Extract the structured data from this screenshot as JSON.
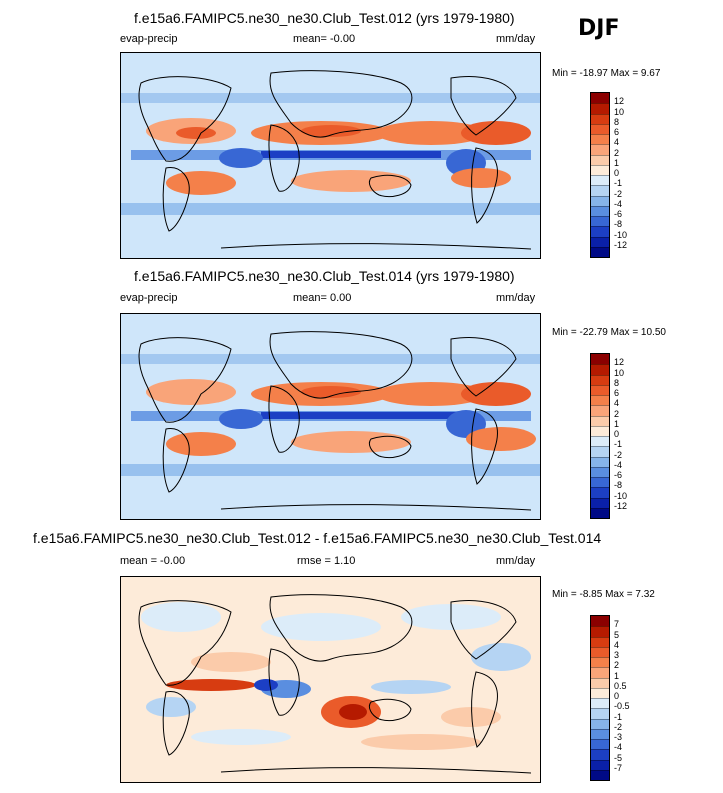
{
  "season": "DJF",
  "panels": [
    {
      "title": "f.e15a6.FAMIPC5.ne30_ne30.Club_Test.012 (yrs 1979-1980)",
      "left_label": "evap-precip",
      "center_label": "mean=  -0.00",
      "units": "mm/day",
      "min_max": "Min = -18.97 Max =   9.67",
      "colorbar_ticks": [
        "12",
        "10",
        "8",
        "6",
        "4",
        "2",
        "1",
        "0",
        "-1",
        "-2",
        "-4",
        "-6",
        "-8",
        "-10",
        "-12"
      ],
      "colorbar_colors": [
        "#8b0000",
        "#b51a00",
        "#d73c11",
        "#ea5b2a",
        "#f4804a",
        "#f9a479",
        "#fbcbaa",
        "#fdebd9",
        "#dcecf9",
        "#b5d4f3",
        "#86b4ea",
        "#5a8ee0",
        "#3867d4",
        "#1c3fc4",
        "#0a20a8",
        "#000a86"
      ]
    },
    {
      "title": "f.e15a6.FAMIPC5.ne30_ne30.Club_Test.014 (yrs 1979-1980)",
      "left_label": "evap-precip",
      "center_label": "mean=   0.00",
      "units": "mm/day",
      "min_max": "Min = -22.79 Max =  10.50",
      "colorbar_ticks": [
        "12",
        "10",
        "8",
        "6",
        "4",
        "2",
        "1",
        "0",
        "-1",
        "-2",
        "-4",
        "-6",
        "-8",
        "-10",
        "-12"
      ],
      "colorbar_colors": [
        "#8b0000",
        "#b51a00",
        "#d73c11",
        "#ea5b2a",
        "#f4804a",
        "#f9a479",
        "#fbcbaa",
        "#fdebd9",
        "#dcecf9",
        "#b5d4f3",
        "#86b4ea",
        "#5a8ee0",
        "#3867d4",
        "#1c3fc4",
        "#0a20a8",
        "#000a86"
      ]
    },
    {
      "title": "f.e15a6.FAMIPC5.ne30_ne30.Club_Test.012 - f.e15a6.FAMIPC5.ne30_ne30.Club_Test.014",
      "left_label": "mean =  -0.00",
      "center_label": "rmse =   1.10",
      "units": "mm/day",
      "min_max": "Min =  -8.85 Max =   7.32",
      "colorbar_ticks": [
        "7",
        "5",
        "4",
        "3",
        "2",
        "1",
        "0.5",
        "0",
        "-0.5",
        "-1",
        "-2",
        "-3",
        "-4",
        "-5",
        "-7"
      ],
      "colorbar_colors": [
        "#8b0000",
        "#b51a00",
        "#d73c11",
        "#ea5b2a",
        "#f4804a",
        "#f9a479",
        "#fbcbaa",
        "#fdebd9",
        "#dcecf9",
        "#b5d4f3",
        "#86b4ea",
        "#5a8ee0",
        "#3867d4",
        "#1c3fc4",
        "#0a20a8",
        "#000a86"
      ]
    }
  ],
  "chart_data": [
    {
      "type": "heatmap",
      "title": "f.e15a6.FAMIPC5.ne30_ne30.Club_Test.012 (yrs 1979-1980)",
      "variable": "evap-precip",
      "units": "mm/day",
      "mean": -0.0,
      "min": -18.97,
      "max": 9.67,
      "levels": [
        -12,
        -10,
        -8,
        -6,
        -4,
        -2,
        -1,
        0,
        1,
        2,
        4,
        6,
        8,
        10,
        12
      ]
    },
    {
      "type": "heatmap",
      "title": "f.e15a6.FAMIPC5.ne30_ne30.Club_Test.014 (yrs 1979-1980)",
      "variable": "evap-precip",
      "units": "mm/day",
      "mean": 0.0,
      "min": -22.79,
      "max": 10.5,
      "levels": [
        -12,
        -10,
        -8,
        -6,
        -4,
        -2,
        -1,
        0,
        1,
        2,
        4,
        6,
        8,
        10,
        12
      ]
    },
    {
      "type": "heatmap",
      "title": "f.e15a6.FAMIPC5.ne30_ne30.Club_Test.012 - f.e15a6.FAMIPC5.ne30_ne30.Club_Test.014",
      "units": "mm/day",
      "mean": -0.0,
      "rmse": 1.1,
      "min": -8.85,
      "max": 7.32,
      "levels": [
        -7,
        -5,
        -4,
        -3,
        -2,
        -1,
        -0.5,
        0,
        0.5,
        1,
        2,
        3,
        4,
        5,
        7
      ]
    }
  ]
}
